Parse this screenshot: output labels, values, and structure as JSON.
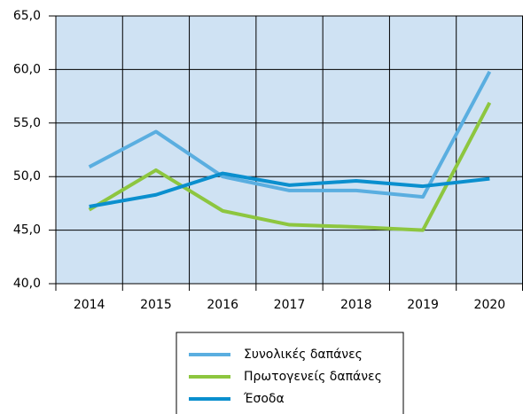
{
  "chart_data": {
    "type": "line",
    "categories": [
      "2014",
      "2015",
      "2016",
      "2017",
      "2018",
      "2019",
      "2020"
    ],
    "series": [
      {
        "name": "Συνολικές δαπάνες",
        "color": "#5aaee0",
        "values": [
          50.9,
          54.2,
          50.0,
          48.7,
          48.7,
          48.1,
          59.8
        ]
      },
      {
        "name": "Πρωτογενείς δαπάνες",
        "color": "#8dc63f",
        "values": [
          46.9,
          50.6,
          46.8,
          45.5,
          45.3,
          45.0,
          56.9
        ]
      },
      {
        "name": "Έσοδα",
        "color": "#0a8fce",
        "values": [
          47.2,
          48.3,
          50.3,
          49.2,
          49.6,
          49.1,
          49.8
        ]
      }
    ],
    "ylim": [
      40,
      65
    ],
    "yticks": [
      {
        "value": 40,
        "label": "40,0"
      },
      {
        "value": 45,
        "label": "45,0"
      },
      {
        "value": 50,
        "label": "50,0"
      },
      {
        "value": 55,
        "label": "55,0"
      },
      {
        "value": 60,
        "label": "60,0"
      },
      {
        "value": 65,
        "label": "65,0"
      }
    ],
    "grid": true
  }
}
